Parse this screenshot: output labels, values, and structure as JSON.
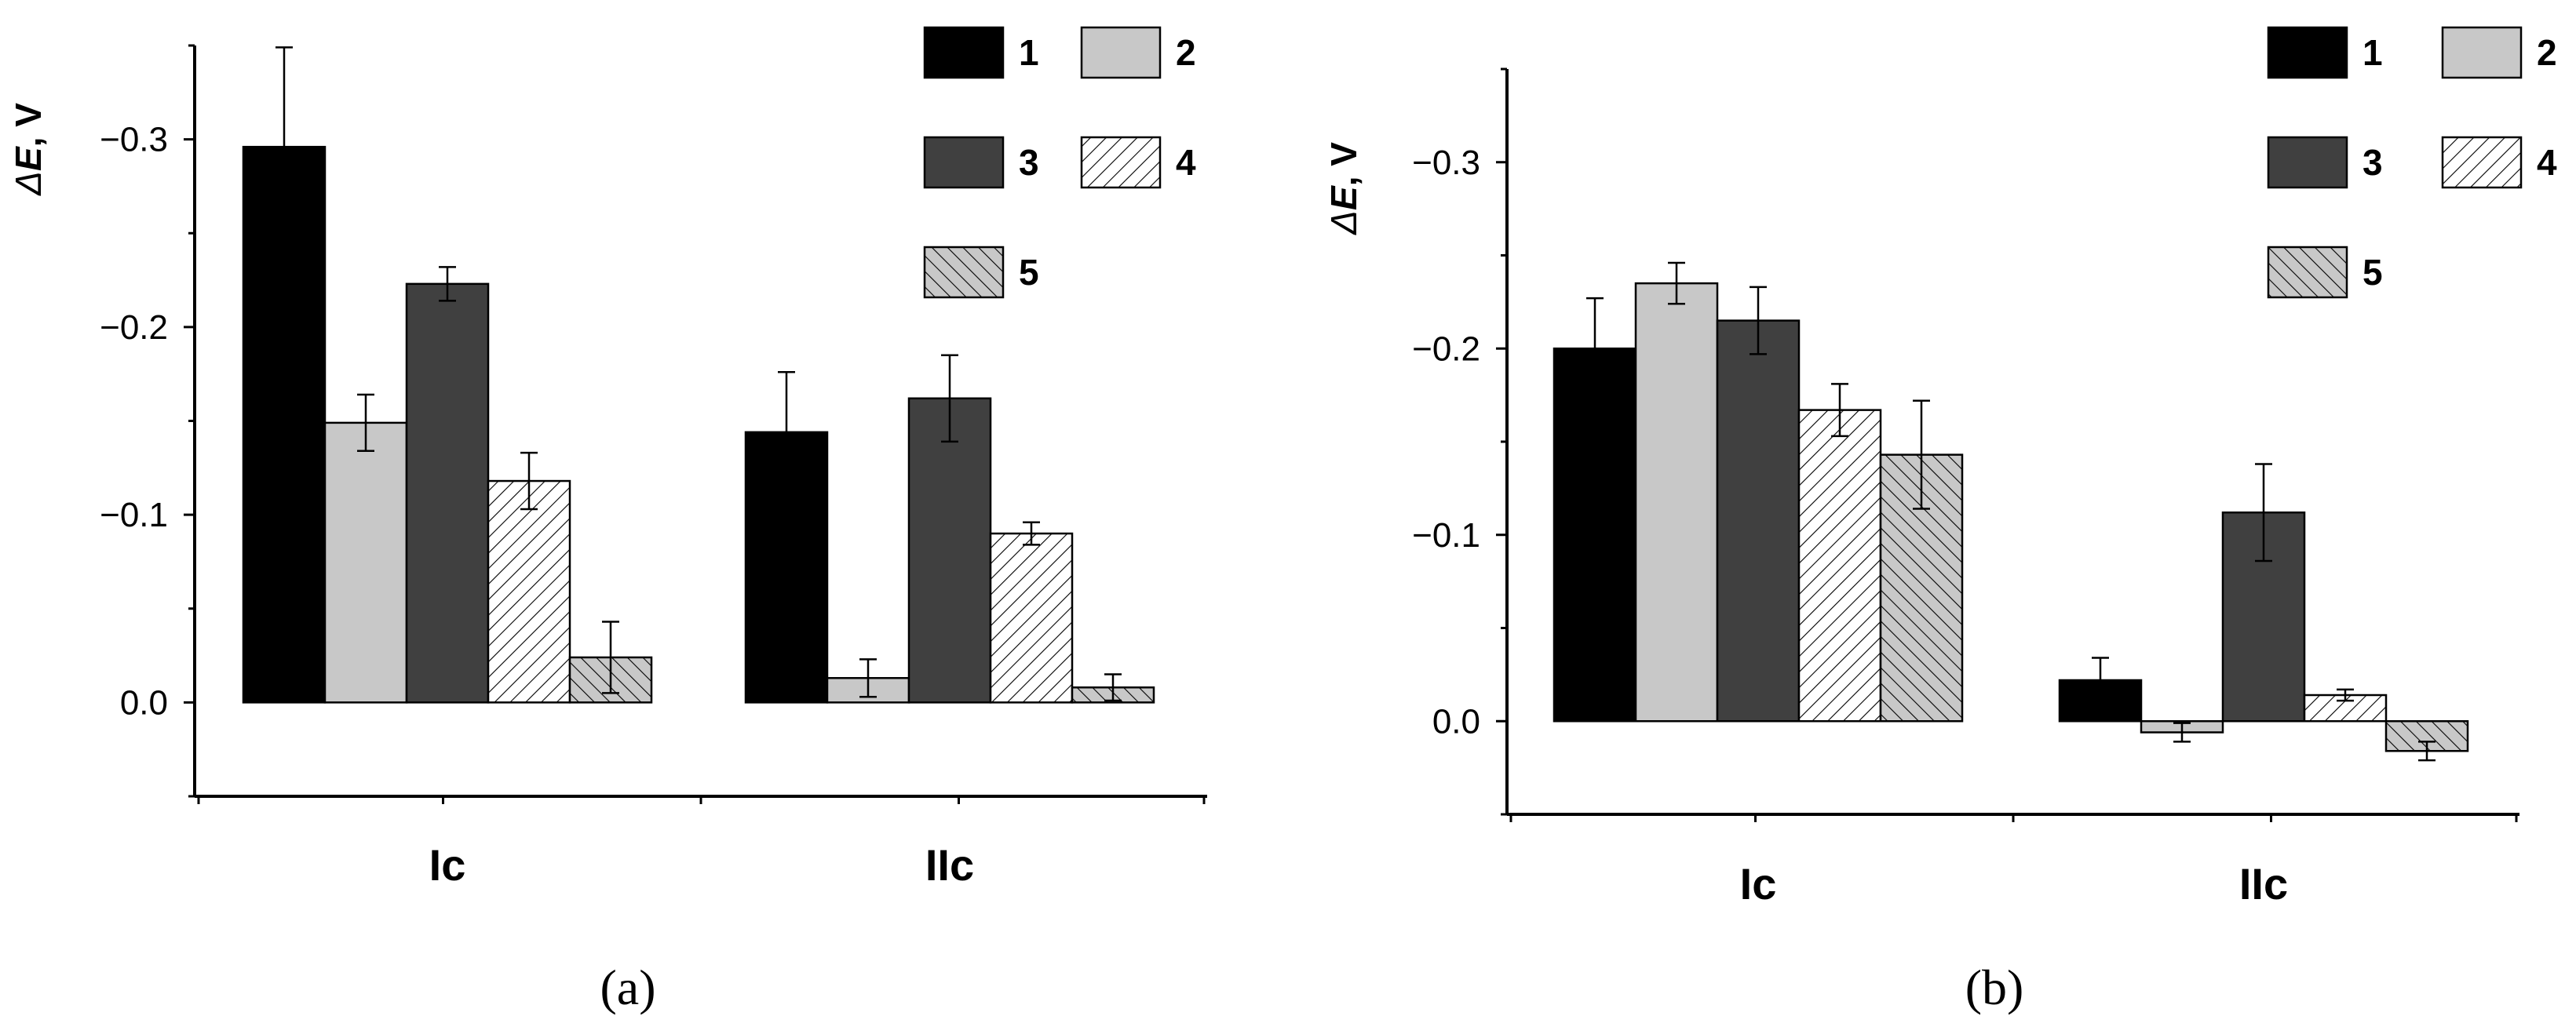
{
  "chart_data": [
    {
      "type": "bar",
      "panel_label": "(a)",
      "ylabel": "ΔE, V",
      "ylabel_parts": [
        "Δ",
        "E",
        ", V"
      ],
      "categories": [
        "Ic",
        "IIc"
      ],
      "y_ticks": [
        0.0,
        -0.1,
        -0.2,
        -0.3
      ],
      "y_tick_labels": [
        "0.0",
        "−0.1",
        "−0.2",
        "−0.3"
      ],
      "ylim": [
        0.05,
        -0.35
      ],
      "legend": [
        "1",
        "2",
        "3",
        "4",
        "5"
      ],
      "series": [
        {
          "name": "1",
          "values": [
            -0.296,
            -0.144
          ],
          "errors": [
            0.053,
            0.032
          ]
        },
        {
          "name": "2",
          "values": [
            -0.149,
            -0.013
          ],
          "errors": [
            0.015,
            0.01
          ]
        },
        {
          "name": "3",
          "values": [
            -0.223,
            -0.162
          ],
          "errors": [
            0.009,
            0.023
          ]
        },
        {
          "name": "4",
          "values": [
            -0.118,
            -0.09
          ],
          "errors": [
            0.015,
            0.006
          ]
        },
        {
          "name": "5",
          "values": [
            -0.024,
            -0.008
          ],
          "errors": [
            0.019,
            0.007
          ]
        }
      ]
    },
    {
      "type": "bar",
      "panel_label": "(b)",
      "ylabel": "ΔE, V",
      "ylabel_parts": [
        "Δ",
        "E",
        ", V"
      ],
      "categories": [
        "Ic",
        "IIc"
      ],
      "y_ticks": [
        0.0,
        -0.1,
        -0.2,
        -0.3
      ],
      "y_tick_labels": [
        "0.0",
        "−0.1",
        "−0.2",
        "−0.3"
      ],
      "ylim": [
        0.05,
        -0.35
      ],
      "legend": [
        "1",
        "2",
        "3",
        "4",
        "5"
      ],
      "series": [
        {
          "name": "1",
          "values": [
            -0.2,
            -0.022
          ],
          "errors": [
            0.027,
            0.012
          ]
        },
        {
          "name": "2",
          "values": [
            -0.235,
            0.006
          ],
          "errors": [
            0.011,
            0.005
          ]
        },
        {
          "name": "3",
          "values": [
            -0.215,
            -0.112
          ],
          "errors": [
            0.018,
            0.026
          ]
        },
        {
          "name": "4",
          "values": [
            -0.167,
            -0.014
          ],
          "errors": [
            0.014,
            0.003
          ]
        },
        {
          "name": "5",
          "values": [
            -0.143,
            0.016
          ],
          "errors": [
            0.029,
            0.005
          ]
        }
      ]
    }
  ],
  "series_styles": [
    {
      "fill": "#000000",
      "pattern": "none"
    },
    {
      "fill": "#c8c8c8",
      "pattern": "none"
    },
    {
      "fill": "#404040",
      "pattern": "none"
    },
    {
      "fill": "#ffffff",
      "pattern": "forward-hatch"
    },
    {
      "fill": "#c8c8c8",
      "pattern": "back-hatch"
    }
  ]
}
